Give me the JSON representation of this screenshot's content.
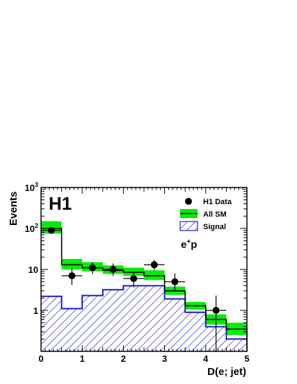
{
  "chart_data": {
    "type": "histogram",
    "experiment_label": "H1",
    "process_label_base": "e",
    "process_label_sup": "+",
    "process_label_tail": "p",
    "xlabel": "D(e; jet)",
    "ylabel": "Events",
    "xlim": [
      0,
      5
    ],
    "ylim": [
      0.1,
      1000
    ],
    "yscale": "log",
    "x_ticks": [
      0,
      1,
      2,
      3,
      4,
      5
    ],
    "y_ticks": [
      {
        "value": 1,
        "base": "1",
        "exp": ""
      },
      {
        "value": 10,
        "base": "10",
        "exp": ""
      },
      {
        "value": 100,
        "base": "10",
        "exp": "2"
      },
      {
        "value": 1000,
        "base": "10",
        "exp": "3"
      }
    ],
    "bin_edges": [
      0,
      0.5,
      1.0,
      1.5,
      2.0,
      2.5,
      3.0,
      3.5,
      4.0,
      4.5,
      5.0
    ],
    "legend": {
      "position": "top-right",
      "entries": [
        {
          "label": "H1 Data",
          "style": "marker"
        },
        {
          "label": "All SM",
          "style": "band"
        },
        {
          "label": "Signal",
          "style": "hatch"
        }
      ]
    },
    "series": [
      {
        "name": "All SM",
        "values": [
          100,
          13,
          11,
          9.5,
          8.5,
          7,
          3,
          1.3,
          0.6,
          0.35
        ],
        "band_low": [
          75,
          10,
          9,
          7.8,
          7,
          5.5,
          2.4,
          1.05,
          0.45,
          0.25
        ],
        "band_high": [
          150,
          18,
          15,
          12.5,
          11,
          9.5,
          3.8,
          1.6,
          0.8,
          0.5
        ],
        "color": "#00ee00"
      },
      {
        "name": "Signal",
        "values": [
          2.2,
          1.1,
          2.3,
          3.2,
          4.0,
          4.0,
          1.9,
          0.9,
          0.4,
          0.2
        ],
        "color": "#1a1acc"
      },
      {
        "name": "H1 Data",
        "x": [
          0.25,
          0.75,
          1.25,
          1.75,
          2.25,
          2.75,
          3.25,
          4.25
        ],
        "y": [
          90,
          7,
          11,
          10,
          6,
          13,
          5,
          1
        ],
        "y_err_low": [
          80,
          4.2,
          7.7,
          6.9,
          3.7,
          9.6,
          2.9,
          0.0
        ],
        "y_err_high": [
          100,
          11,
          15,
          14,
          9,
          17,
          8,
          2.3
        ],
        "color": "#000000"
      }
    ]
  }
}
